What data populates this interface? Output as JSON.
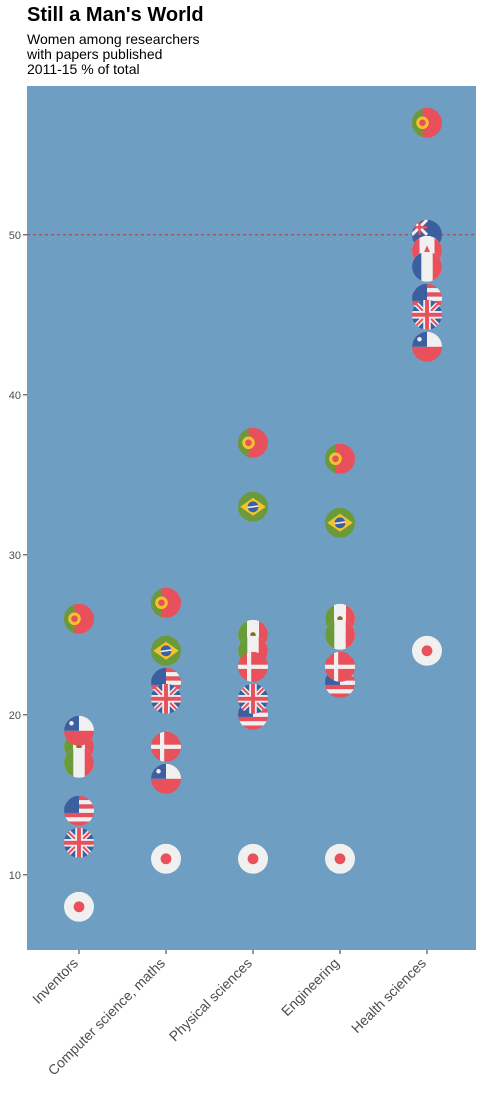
{
  "chart_data": {
    "type": "scatter",
    "title": "Still a Man's World",
    "subtitle": [
      "Women among researchers",
      "with papers published",
      "2011-15 % of total"
    ],
    "xlabel": "",
    "ylabel": "",
    "categories": [
      "Inventors",
      "Computer science, maths",
      "Physical sciences",
      "Engineering",
      "Health sciences"
    ],
    "ylim": [
      5.3,
      59.3
    ],
    "yticks": [
      10,
      20,
      30,
      40,
      50
    ],
    "reference_line": 50,
    "grid": false,
    "legend": "none",
    "series": [
      {
        "flag": "portugal",
        "values": [
          26,
          27,
          37,
          36,
          57
        ]
      },
      {
        "flag": "brazil",
        "values": [
          null,
          24,
          33,
          32,
          null
        ]
      },
      {
        "flag": "mexico",
        "values": [
          18,
          null,
          25,
          26,
          null
        ]
      },
      {
        "flag": "italy",
        "values": [
          17,
          null,
          24,
          25,
          null
        ]
      },
      {
        "flag": "chile",
        "values": [
          19,
          16,
          null,
          null,
          43
        ]
      },
      {
        "flag": "usa",
        "values": [
          14,
          22,
          20,
          22,
          46
        ]
      },
      {
        "flag": "uk",
        "values": [
          12,
          21,
          21,
          23,
          45
        ]
      },
      {
        "flag": "denmark",
        "values": [
          null,
          18,
          23,
          23,
          null
        ]
      },
      {
        "flag": "australia",
        "values": [
          null,
          null,
          null,
          null,
          50
        ]
      },
      {
        "flag": "canada",
        "values": [
          null,
          null,
          null,
          null,
          49
        ]
      },
      {
        "flag": "france",
        "values": [
          null,
          null,
          null,
          null,
          48
        ]
      },
      {
        "flag": "japan",
        "values": [
          8,
          11,
          11,
          11,
          24
        ]
      }
    ]
  },
  "colors": {
    "panel": "#6f9ec3",
    "reference_line": "#cc2b3a",
    "red": "#e8505b",
    "white": "#f0f0f0",
    "blue": "#3c5fa0",
    "green": "#6b9a3a",
    "yellow": "#f2c230"
  }
}
